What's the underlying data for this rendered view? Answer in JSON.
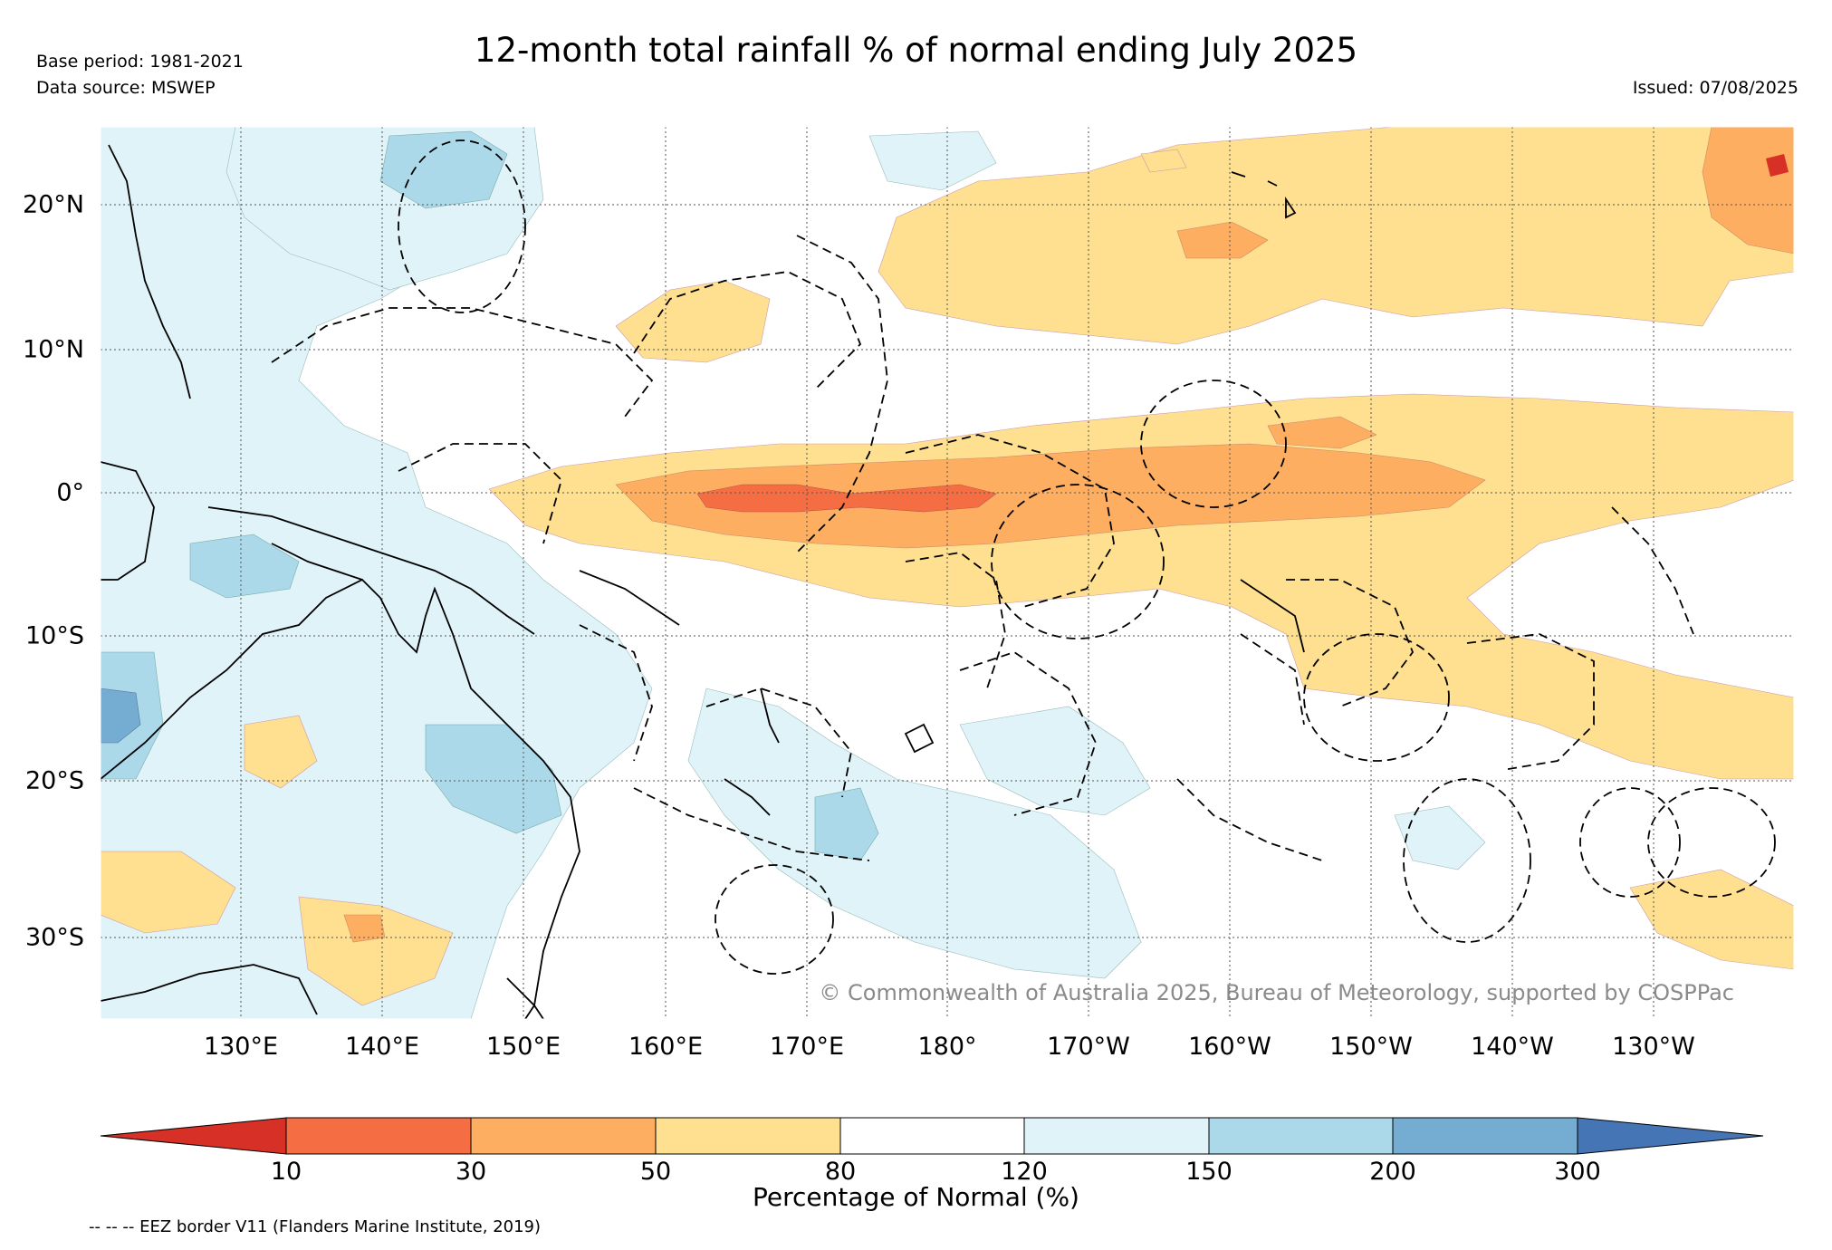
{
  "header": {
    "base_period": "Base period: 1981-2021",
    "data_source": "Data source: MSWEP",
    "title": "12-month total rainfall % of normal ending July 2025",
    "issued": "Issued: 07/08/2025"
  },
  "map": {
    "lat_labels": [
      "20°N",
      "10°N",
      "0°",
      "10°S",
      "20°S",
      "30°S"
    ],
    "lon_labels": [
      "130°E",
      "140°E",
      "150°E",
      "160°E",
      "170°E",
      "180°",
      "170°W",
      "160°W",
      "150°W",
      "140°W",
      "130°W"
    ],
    "copyright": "© Commonwealth of Australia 2025, Bureau of Meteorology, supported by COSPPac"
  },
  "colorbar": {
    "ticks": [
      "10",
      "30",
      "50",
      "80",
      "120",
      "150",
      "200",
      "300"
    ],
    "label": "Percentage of Normal (%)",
    "colors": {
      "below_10": "#d73027",
      "10_30": "#f46d43",
      "30_50": "#fdae61",
      "50_80": "#fee090",
      "80_120": "#ffffff",
      "120_150": "#e0f3f8",
      "150_200": "#abd9e9",
      "200_300": "#74add1",
      "above_300": "#4575b4"
    }
  },
  "footer": {
    "eez_note": "-- -- -- EEZ border V11 (Flanders Marine Institute, 2019)"
  }
}
